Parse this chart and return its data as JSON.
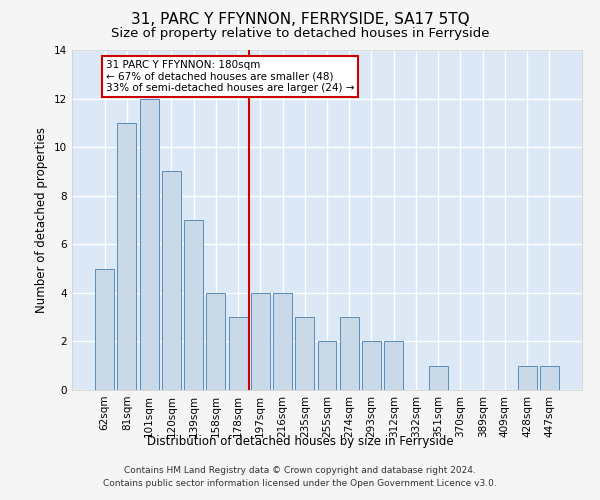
{
  "title": "31, PARC Y FFYNNON, FERRYSIDE, SA17 5TQ",
  "subtitle": "Size of property relative to detached houses in Ferryside",
  "xlabel": "Distribution of detached houses by size in Ferryside",
  "ylabel": "Number of detached properties",
  "categories": [
    "62sqm",
    "81sqm",
    "101sqm",
    "120sqm",
    "139sqm",
    "158sqm",
    "178sqm",
    "197sqm",
    "216sqm",
    "235sqm",
    "255sqm",
    "274sqm",
    "293sqm",
    "312sqm",
    "332sqm",
    "351sqm",
    "370sqm",
    "389sqm",
    "409sqm",
    "428sqm",
    "447sqm"
  ],
  "values": [
    5,
    11,
    12,
    9,
    7,
    4,
    3,
    4,
    4,
    3,
    2,
    3,
    2,
    2,
    0,
    1,
    0,
    0,
    0,
    1,
    1
  ],
  "bar_color": "#c9d9e8",
  "bar_edge_color": "#5b8db8",
  "ref_line_x": 6.5,
  "ref_line_label": "31 PARC Y FFYNNON: 180sqm",
  "annotation_line1": "← 67% of detached houses are smaller (48)",
  "annotation_line2": "33% of semi-detached houses are larger (24) →",
  "annotation_box_color": "#ffffff",
  "annotation_box_edge_color": "#cc0000",
  "ref_line_color": "#cc0000",
  "ylim": [
    0,
    14
  ],
  "yticks": [
    0,
    2,
    4,
    6,
    8,
    10,
    12,
    14
  ],
  "footer_line1": "Contains HM Land Registry data © Crown copyright and database right 2024.",
  "footer_line2": "Contains public sector information licensed under the Open Government Licence v3.0.",
  "background_color": "#dce8f5",
  "grid_color": "#ffffff",
  "title_fontsize": 11,
  "subtitle_fontsize": 9.5,
  "axis_label_fontsize": 8.5,
  "tick_fontsize": 7.5,
  "annotation_fontsize": 7.5,
  "footer_fontsize": 6.5
}
